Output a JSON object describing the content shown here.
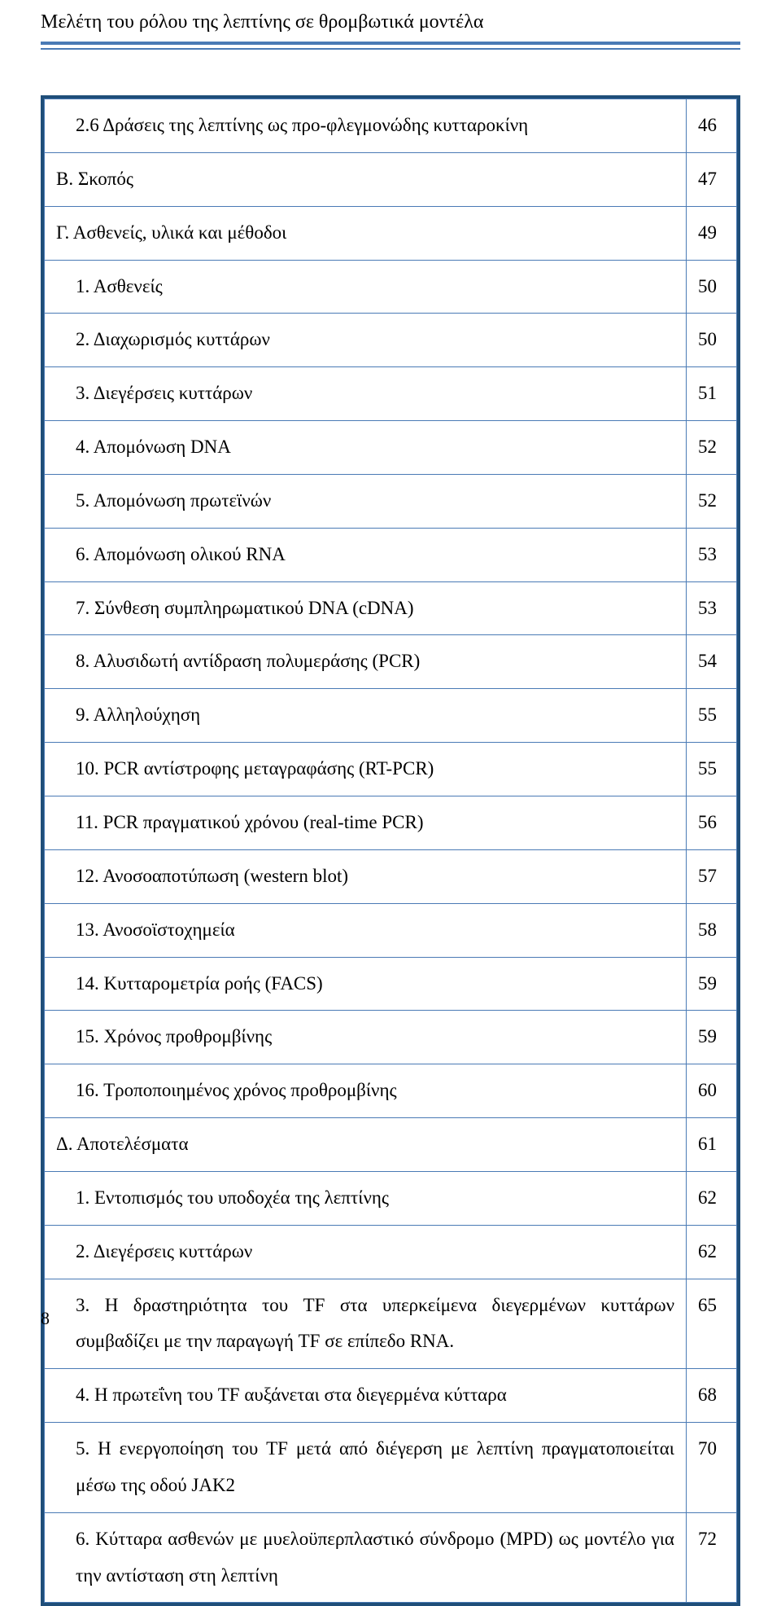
{
  "header": {
    "title": "Μελέτη του ρόλου της λεπτίνης σε θρομβωτικά μοντέλα"
  },
  "colors": {
    "border_dark": "#1f4e79",
    "border_light": "#4a7ab5",
    "text": "#000000",
    "background": "#ffffff"
  },
  "rows": [
    {
      "text": "2.6 Δράσεις της λεπτίνης ως προ-φλεγμονώδης κυτταροκίνη",
      "page": "46",
      "indent": true,
      "justify": false
    },
    {
      "text": "Β. Σκοπός",
      "page": "47",
      "indent": false,
      "justify": false
    },
    {
      "text": "Γ. Ασθενείς, υλικά και μέθοδοι",
      "page": "49",
      "indent": false,
      "justify": false
    },
    {
      "text": "1. Ασθενείς",
      "page": "50",
      "indent": true,
      "justify": false
    },
    {
      "text": "2. Διαχωρισμός κυττάρων",
      "page": "50",
      "indent": true,
      "justify": false
    },
    {
      "text": "3. Διεγέρσεις κυττάρων",
      "page": "51",
      "indent": true,
      "justify": false
    },
    {
      "text": "4. Απομόνωση DNA",
      "page": "52",
      "indent": true,
      "justify": false
    },
    {
      "text": "5. Απομόνωση πρωτεϊνών",
      "page": "52",
      "indent": true,
      "justify": false
    },
    {
      "text": "6. Απομόνωση ολικού RNA",
      "page": "53",
      "indent": true,
      "justify": false
    },
    {
      "text": "7. Σύνθεση συμπληρωματικού DNA (cDNA)",
      "page": "53",
      "indent": true,
      "justify": false
    },
    {
      "text": "8. Αλυσιδωτή αντίδραση πολυμεράσης (PCR)",
      "page": "54",
      "indent": true,
      "justify": false
    },
    {
      "text": "9. Αλληλούχηση",
      "page": "55",
      "indent": true,
      "justify": false
    },
    {
      "text": "10. PCR αντίστροφης μεταγραφάσης (RT-PCR)",
      "page": "55",
      "indent": true,
      "justify": false
    },
    {
      "text": "11. PCR πραγματικού χρόνου (real-time PCR)",
      "page": "56",
      "indent": true,
      "justify": false
    },
    {
      "text": "12. Ανοσοαποτύπωση (western blot)",
      "page": "57",
      "indent": true,
      "justify": false
    },
    {
      "text": "13. Ανοσοϊστοχημεία",
      "page": "58",
      "indent": true,
      "justify": false
    },
    {
      "text": "14. Κυτταρομετρία ροής (FACS)",
      "page": "59",
      "indent": true,
      "justify": false
    },
    {
      "text": "15. Χρόνος προθρομβίνης",
      "page": "59",
      "indent": true,
      "justify": false
    },
    {
      "text": "16. Τροποποιημένος χρόνος προθρομβίνης",
      "page": "60",
      "indent": true,
      "justify": false
    },
    {
      "text": "Δ. Αποτελέσματα",
      "page": "61",
      "indent": false,
      "justify": false
    },
    {
      "text": "1. Εντοπισμός του υποδοχέα της λεπτίνης",
      "page": "62",
      "indent": true,
      "justify": false
    },
    {
      "text": "2. Διεγέρσεις κυττάρων",
      "page": "62",
      "indent": true,
      "justify": false
    },
    {
      "text": "3. Η δραστηριότητα του TF στα υπερκείμενα διεγερμένων κυττάρων συμβαδίζει με την παραγωγή TF σε επίπεδο RNA.",
      "page": "65",
      "indent": true,
      "justify": true
    },
    {
      "text": "4. Η πρωτεΐνη του TF αυξάνεται στα διεγερμένα κύτταρα",
      "page": "68",
      "indent": true,
      "justify": false
    },
    {
      "text": "5. Η ενεργοποίηση του TF μετά από διέγερση με λεπτίνη πραγματοποιείται μέσω της οδού JAK2",
      "page": "70",
      "indent": true,
      "justify": true
    },
    {
      "text": "6. Κύτταρα ασθενών με μυελοϋπερπλαστικό σύνδρομο (MPD) ως μοντέλο για την αντίσταση στη λεπτίνη",
      "page": "72",
      "indent": true,
      "justify": true
    }
  ],
  "page_number": "8"
}
